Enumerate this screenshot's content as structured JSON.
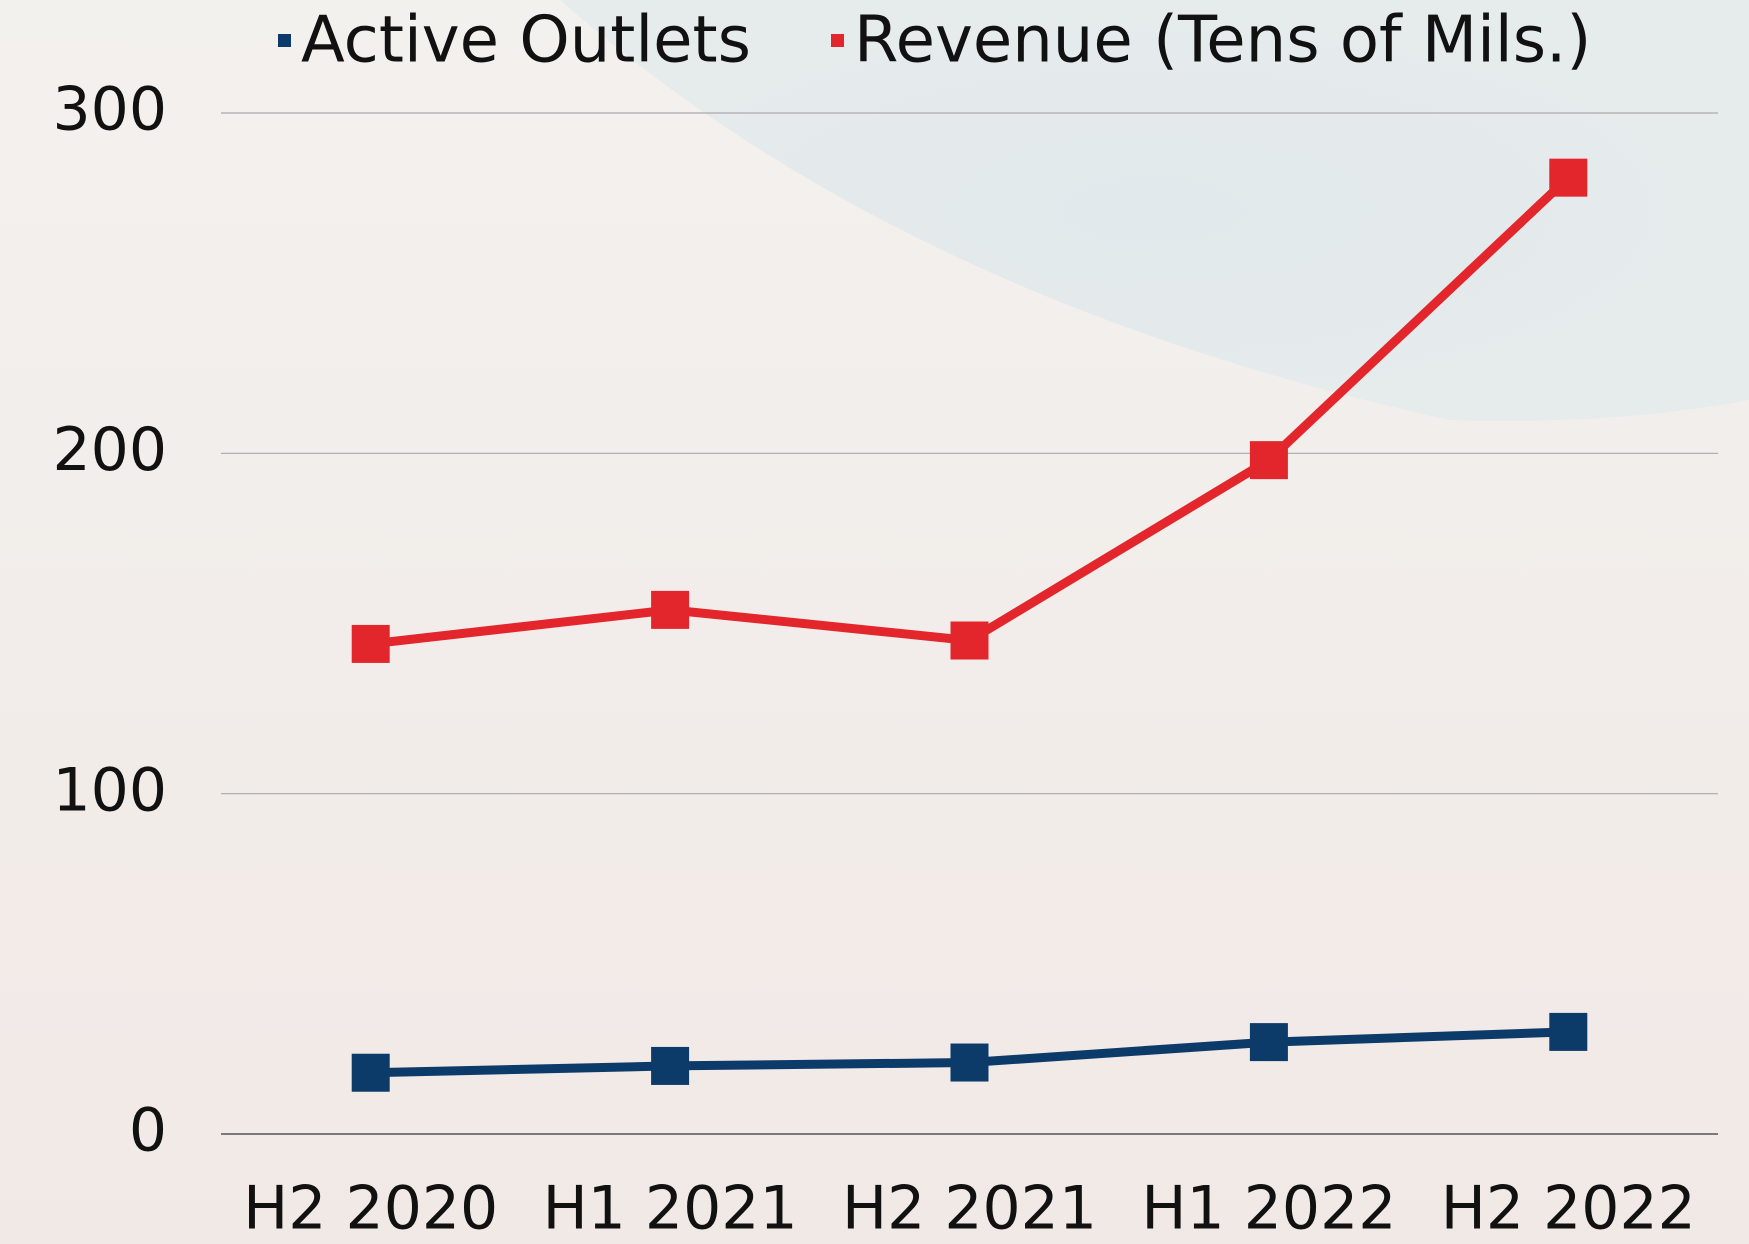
{
  "chart_data": {
    "type": "line",
    "categories": [
      "H2 2020",
      "H1 2021",
      "H2 2021",
      "H1 2022",
      "H2 2022"
    ],
    "series": [
      {
        "name": "Active Outlets",
        "color": "#0c3b6a",
        "values": [
          18,
          20,
          21,
          27,
          30
        ]
      },
      {
        "name": "Revenue (Tens of Mils.)",
        "color": "#e3262b",
        "values": [
          144,
          154,
          145,
          198,
          281
        ]
      }
    ],
    "ylim": [
      0,
      300
    ],
    "yticks": [
      0,
      100,
      200,
      300
    ],
    "grid": true,
    "legend": "top"
  }
}
